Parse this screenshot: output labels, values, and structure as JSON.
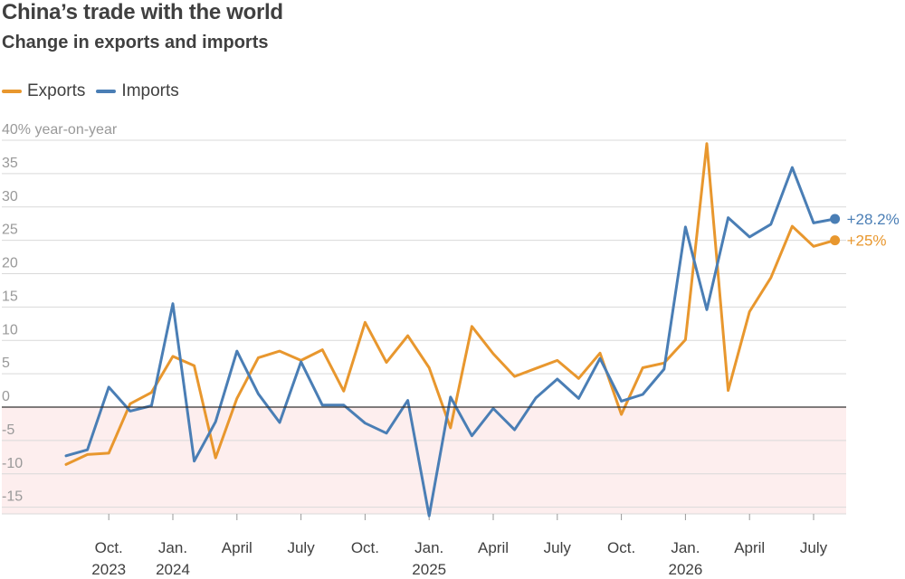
{
  "title": "China’s trade with the world",
  "subtitle": "Change in exports and imports",
  "colors": {
    "exports": "#E8972E",
    "imports": "#4A7EB5",
    "axis": "#333333",
    "grid": "#d9d9d9",
    "negative_shade": "#fdeeee",
    "text": "#404040",
    "tick": "#999999"
  },
  "chart_data": {
    "type": "line",
    "ylabel": "40% year-on-year",
    "ylim": [
      -16,
      40
    ],
    "y_ticks": [
      35,
      30,
      25,
      20,
      15,
      10,
      5,
      0,
      -5,
      -10,
      -15
    ],
    "x_ticks": [
      {
        "index": 2,
        "label": "Oct.",
        "year": "2023"
      },
      {
        "index": 5,
        "label": "Jan.",
        "year": "2024"
      },
      {
        "index": 8,
        "label": "April",
        "year": ""
      },
      {
        "index": 11,
        "label": "July",
        "year": ""
      },
      {
        "index": 14,
        "label": "Oct.",
        "year": ""
      },
      {
        "index": 17,
        "label": "Jan.",
        "year": "2025"
      },
      {
        "index": 20,
        "label": "April",
        "year": ""
      },
      {
        "index": 23,
        "label": "July",
        "year": ""
      },
      {
        "index": 26,
        "label": "Oct.",
        "year": ""
      },
      {
        "index": 29,
        "label": "Jan.",
        "year": "2026"
      },
      {
        "index": 32,
        "label": "April",
        "year": ""
      },
      {
        "index": 35,
        "label": "July",
        "year": ""
      }
    ],
    "series": [
      {
        "name": "Exports",
        "end_label": "+25%",
        "values": [
          -8.6,
          -7.1,
          -6.9,
          0.5,
          2.2,
          7.6,
          6.2,
          -7.6,
          1.3,
          7.4,
          8.4,
          7.0,
          8.6,
          2.4,
          12.7,
          6.7,
          10.7,
          5.9,
          -3.1,
          12.1,
          8.0,
          4.6,
          5.8,
          7.0,
          4.3,
          8.1,
          -1.1,
          5.9,
          6.6,
          10.1,
          39.5,
          2.5,
          14.3,
          19.4,
          27.1,
          24.1,
          25.0
        ]
      },
      {
        "name": "Imports",
        "end_label": "+28.2%",
        "values": [
          -7.3,
          -6.4,
          3.0,
          -0.6,
          0.2,
          15.5,
          -8.1,
          -2.2,
          8.4,
          2.0,
          -2.3,
          6.8,
          0.3,
          0.3,
          -2.4,
          -3.9,
          1.0,
          -16.3,
          1.5,
          -4.3,
          -0.2,
          -3.4,
          1.4,
          4.2,
          1.3,
          7.3,
          0.9,
          1.9,
          5.7,
          27.0,
          14.6,
          28.4,
          25.5,
          27.4,
          35.9,
          27.6,
          28.2
        ]
      }
    ]
  }
}
